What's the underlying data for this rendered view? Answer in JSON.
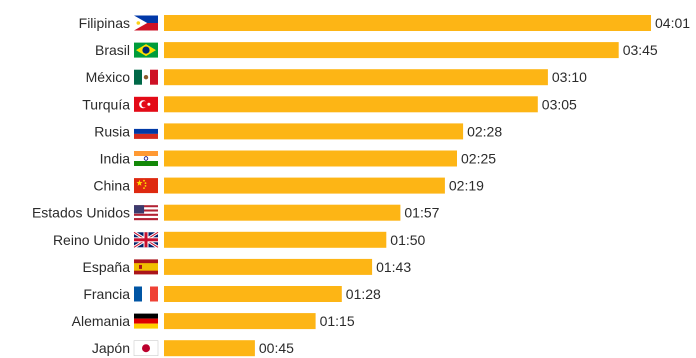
{
  "chart_data": {
    "type": "bar",
    "orientation": "horizontal",
    "title": "",
    "xlabel": "",
    "ylabel": "",
    "value_unit": "minutes",
    "xlim": [
      0,
      241
    ],
    "grid": false,
    "legend": "none",
    "bar_color": "#FDB515",
    "categories": [
      "Filipinas",
      "Brasil",
      "México",
      "Turquía",
      "Rusia",
      "India",
      "China",
      "Estados Unidos",
      "Reino Unido",
      "España",
      "Francia",
      "Alemania",
      "Japón"
    ],
    "values": [
      241,
      225,
      190,
      185,
      148,
      145,
      139,
      117,
      110,
      103,
      88,
      75,
      45
    ],
    "value_labels": [
      "04:01",
      "03:45",
      "03:10",
      "03:05",
      "02:28",
      "02:25",
      "02:19",
      "01:57",
      "01:50",
      "01:43",
      "01:28",
      "01:15",
      "00:45"
    ],
    "flag_icons": [
      "philippines-flag-icon",
      "brazil-flag-icon",
      "mexico-flag-icon",
      "turkey-flag-icon",
      "russia-flag-icon",
      "india-flag-icon",
      "china-flag-icon",
      "usa-flag-icon",
      "uk-flag-icon",
      "spain-flag-icon",
      "france-flag-icon",
      "germany-flag-icon",
      "japan-flag-icon"
    ]
  }
}
